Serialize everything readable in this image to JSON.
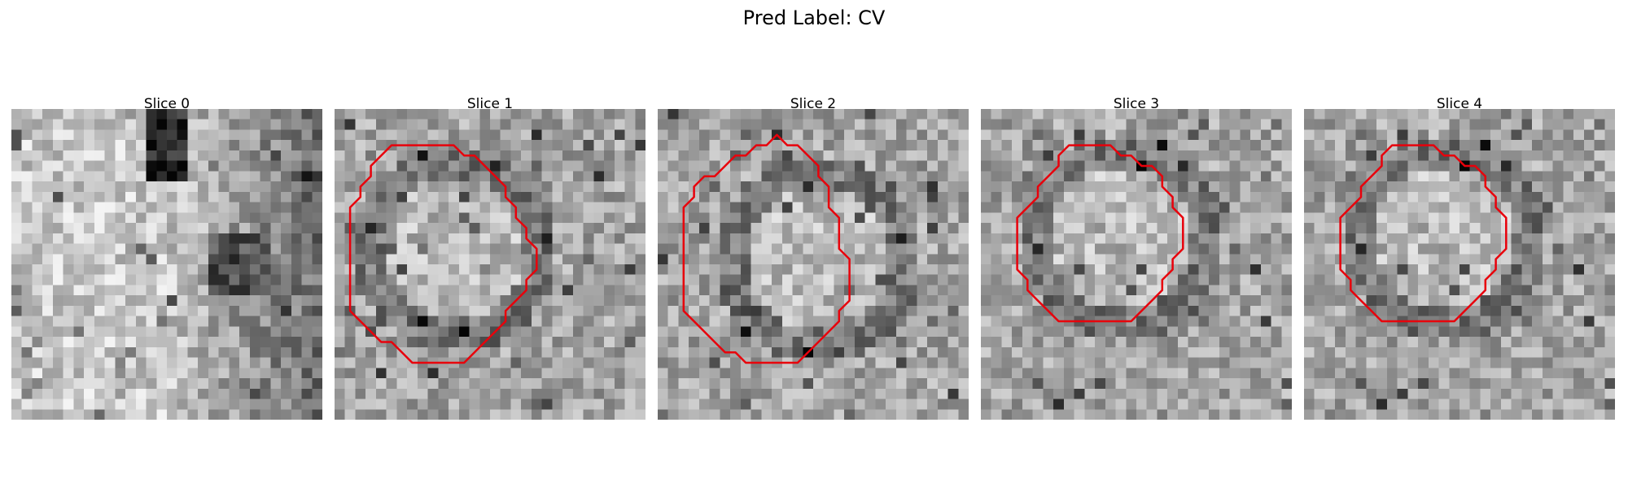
{
  "figure": {
    "title": "Pred Label: CV"
  },
  "colors": {
    "contour": "#e8000b"
  },
  "slices": [
    {
      "title": "Slice 0",
      "seed": 11,
      "contour": null
    },
    {
      "title": "Slice 1",
      "seed": 23,
      "contour": [
        [
          10,
          3
        ],
        [
          11,
          3
        ],
        [
          12,
          4
        ],
        [
          13,
          4
        ],
        [
          14,
          5
        ],
        [
          15,
          6
        ],
        [
          16,
          7
        ],
        [
          16,
          8
        ],
        [
          17,
          9
        ],
        [
          17,
          10
        ],
        [
          18,
          11
        ],
        [
          18,
          12
        ],
        [
          19,
          13
        ],
        [
          19,
          14
        ],
        [
          19,
          15
        ],
        [
          18,
          16
        ],
        [
          18,
          17
        ],
        [
          17,
          18
        ],
        [
          16,
          19
        ],
        [
          16,
          20
        ],
        [
          15,
          21
        ],
        [
          14,
          22
        ],
        [
          13,
          23
        ],
        [
          12,
          24
        ],
        [
          11,
          24
        ],
        [
          10,
          24
        ],
        [
          9,
          24
        ],
        [
          8,
          24
        ],
        [
          7,
          24
        ],
        [
          6,
          23
        ],
        [
          5,
          22
        ],
        [
          4,
          22
        ],
        [
          3,
          21
        ],
        [
          2,
          20
        ],
        [
          1,
          19
        ],
        [
          1,
          18
        ],
        [
          1,
          17
        ],
        [
          1,
          16
        ],
        [
          1,
          15
        ],
        [
          1,
          14
        ],
        [
          1,
          13
        ],
        [
          1,
          12
        ],
        [
          1,
          11
        ],
        [
          1,
          10
        ],
        [
          1,
          9
        ],
        [
          2,
          8
        ],
        [
          2,
          7
        ],
        [
          3,
          6
        ],
        [
          3,
          5
        ],
        [
          4,
          4
        ],
        [
          5,
          3
        ],
        [
          6,
          3
        ],
        [
          7,
          3
        ],
        [
          8,
          3
        ],
        [
          9,
          3
        ]
      ]
    },
    {
      "title": "Slice 2",
      "seed": 37,
      "contour": [
        [
          10,
          3
        ],
        [
          11,
          2
        ],
        [
          12,
          3
        ],
        [
          13,
          3
        ],
        [
          14,
          4
        ],
        [
          15,
          5
        ],
        [
          15,
          6
        ],
        [
          16,
          7
        ],
        [
          16,
          8
        ],
        [
          16,
          9
        ],
        [
          17,
          10
        ],
        [
          17,
          11
        ],
        [
          17,
          12
        ],
        [
          17,
          13
        ],
        [
          18,
          14
        ],
        [
          18,
          15
        ],
        [
          18,
          16
        ],
        [
          18,
          17
        ],
        [
          18,
          18
        ],
        [
          17,
          19
        ],
        [
          17,
          20
        ],
        [
          16,
          21
        ],
        [
          15,
          22
        ],
        [
          14,
          23
        ],
        [
          13,
          24
        ],
        [
          12,
          24
        ],
        [
          11,
          24
        ],
        [
          10,
          24
        ],
        [
          9,
          24
        ],
        [
          8,
          24
        ],
        [
          7,
          23
        ],
        [
          6,
          23
        ],
        [
          5,
          22
        ],
        [
          4,
          21
        ],
        [
          3,
          20
        ],
        [
          2,
          19
        ],
        [
          2,
          18
        ],
        [
          2,
          17
        ],
        [
          2,
          16
        ],
        [
          2,
          15
        ],
        [
          2,
          14
        ],
        [
          2,
          13
        ],
        [
          2,
          12
        ],
        [
          2,
          11
        ],
        [
          2,
          10
        ],
        [
          2,
          9
        ],
        [
          3,
          8
        ],
        [
          3,
          7
        ],
        [
          4,
          6
        ],
        [
          5,
          6
        ],
        [
          6,
          5
        ],
        [
          7,
          4
        ],
        [
          8,
          4
        ],
        [
          9,
          3
        ]
      ]
    },
    {
      "title": "Slice 3",
      "seed": 51,
      "contour": [
        [
          8,
          3
        ],
        [
          9,
          3
        ],
        [
          10,
          3
        ],
        [
          11,
          3
        ],
        [
          12,
          3
        ],
        [
          13,
          4
        ],
        [
          14,
          4
        ],
        [
          15,
          5
        ],
        [
          16,
          5
        ],
        [
          17,
          6
        ],
        [
          17,
          7
        ],
        [
          18,
          8
        ],
        [
          18,
          9
        ],
        [
          19,
          10
        ],
        [
          19,
          11
        ],
        [
          19,
          12
        ],
        [
          19,
          13
        ],
        [
          18,
          14
        ],
        [
          18,
          15
        ],
        [
          17,
          16
        ],
        [
          17,
          17
        ],
        [
          16,
          18
        ],
        [
          15,
          19
        ],
        [
          14,
          20
        ],
        [
          13,
          20
        ],
        [
          12,
          20
        ],
        [
          11,
          20
        ],
        [
          10,
          20
        ],
        [
          9,
          20
        ],
        [
          8,
          20
        ],
        [
          7,
          20
        ],
        [
          6,
          19
        ],
        [
          5,
          18
        ],
        [
          4,
          17
        ],
        [
          4,
          16
        ],
        [
          3,
          15
        ],
        [
          3,
          14
        ],
        [
          3,
          13
        ],
        [
          3,
          12
        ],
        [
          3,
          11
        ],
        [
          3,
          10
        ],
        [
          4,
          9
        ],
        [
          5,
          8
        ],
        [
          5,
          7
        ],
        [
          6,
          6
        ],
        [
          7,
          5
        ],
        [
          7,
          4
        ]
      ]
    },
    {
      "title": "Slice 4",
      "seed": 51,
      "contour": [
        [
          8,
          3
        ],
        [
          9,
          3
        ],
        [
          10,
          3
        ],
        [
          11,
          3
        ],
        [
          12,
          3
        ],
        [
          13,
          4
        ],
        [
          14,
          4
        ],
        [
          15,
          5
        ],
        [
          16,
          5
        ],
        [
          17,
          6
        ],
        [
          17,
          7
        ],
        [
          18,
          8
        ],
        [
          18,
          9
        ],
        [
          19,
          10
        ],
        [
          19,
          11
        ],
        [
          19,
          12
        ],
        [
          19,
          13
        ],
        [
          18,
          14
        ],
        [
          18,
          15
        ],
        [
          17,
          16
        ],
        [
          17,
          17
        ],
        [
          16,
          18
        ],
        [
          15,
          19
        ],
        [
          14,
          20
        ],
        [
          13,
          20
        ],
        [
          12,
          20
        ],
        [
          11,
          20
        ],
        [
          10,
          20
        ],
        [
          9,
          20
        ],
        [
          8,
          20
        ],
        [
          7,
          20
        ],
        [
          6,
          19
        ],
        [
          5,
          18
        ],
        [
          4,
          17
        ],
        [
          4,
          16
        ],
        [
          3,
          15
        ],
        [
          3,
          14
        ],
        [
          3,
          13
        ],
        [
          3,
          12
        ],
        [
          3,
          11
        ],
        [
          3,
          10
        ],
        [
          4,
          9
        ],
        [
          5,
          8
        ],
        [
          5,
          7
        ],
        [
          6,
          6
        ],
        [
          7,
          5
        ],
        [
          7,
          4
        ]
      ]
    }
  ]
}
